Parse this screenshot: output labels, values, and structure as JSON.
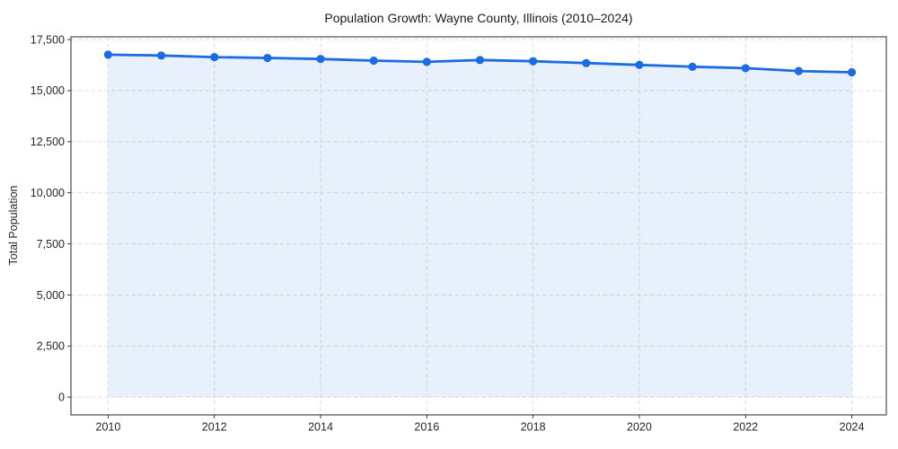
{
  "chart_data": {
    "type": "area",
    "title": "Population Growth: Wayne County, Illinois (2010–2024)",
    "ylabel": "Total Population",
    "xlabel": "",
    "series": [
      {
        "name": "Total Population",
        "x": [
          2010,
          2011,
          2012,
          2013,
          2014,
          2015,
          2016,
          2017,
          2018,
          2019,
          2020,
          2021,
          2022,
          2023,
          2024
        ],
        "values": [
          16760,
          16720,
          16640,
          16600,
          16550,
          16470,
          16410,
          16500,
          16440,
          16350,
          16260,
          16170,
          16100,
          15960,
          15900
        ]
      }
    ],
    "xticks": [
      2010,
      2012,
      2014,
      2016,
      2018,
      2020,
      2022,
      2024
    ],
    "yticks": [
      0,
      2500,
      5000,
      7500,
      10000,
      12500,
      15000,
      17500
    ],
    "xlim": [
      2009.3,
      2024.65
    ],
    "ylim": [
      -870,
      17635
    ],
    "grid": "both-dashed",
    "legend": "none",
    "marker": "circle",
    "colors": {
      "line": "#1b6ce2",
      "marker": "#1b6ce2",
      "area_fill": "rgba(27,108,226,0.10)",
      "grid": "#d9d9d9",
      "axis": "#262626",
      "tick_text": "#262626",
      "title_text": "#1a1a1a",
      "background": "#ffffff"
    }
  }
}
